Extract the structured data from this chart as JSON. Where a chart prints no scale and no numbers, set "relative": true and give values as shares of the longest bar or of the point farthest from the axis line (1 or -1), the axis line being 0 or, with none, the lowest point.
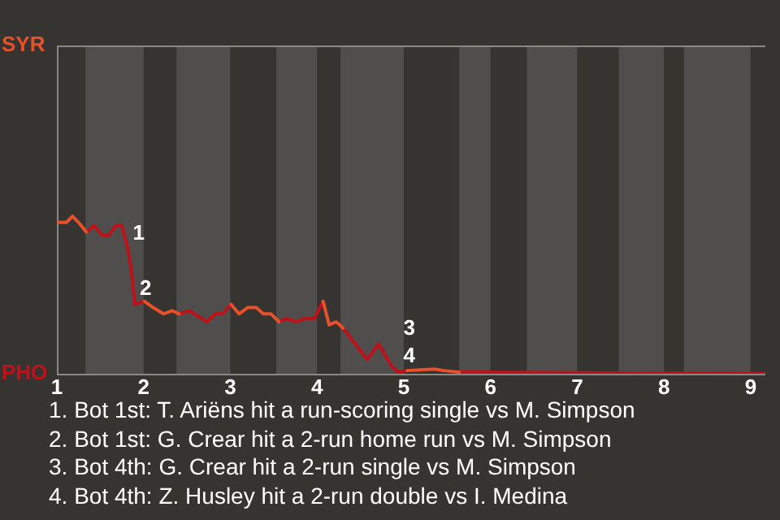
{
  "chart_data": {
    "type": "line",
    "relative": true,
    "x": [
      1.02,
      1.11,
      1.18,
      1.25,
      1.34,
      1.43,
      1.52,
      1.6,
      1.68,
      1.75,
      1.82,
      1.86,
      1.9,
      2.01,
      2.11,
      2.23,
      2.33,
      2.41,
      2.53,
      2.73,
      2.83,
      2.91,
      3.01,
      3.1,
      3.2,
      3.3,
      3.38,
      3.47,
      3.56,
      3.65,
      3.76,
      3.85,
      3.97,
      4.07,
      4.14,
      4.22,
      4.3,
      4.41,
      4.58,
      4.71,
      4.87,
      4.94,
      5.04,
      5.35,
      5.46,
      5.64,
      9.17
    ],
    "series": [
      {
        "name": "SYR",
        "color": "#e8502a",
        "values": [
          0.96,
          0.96,
          1,
          0.96,
          0.9,
          null,
          null,
          null,
          null,
          null,
          null,
          null,
          null,
          0.46,
          0.42,
          0.38,
          0.4,
          0.38,
          null,
          null,
          null,
          null,
          0.44,
          0.38,
          0.42,
          0.42,
          0.38,
          0.38,
          0.33,
          null,
          null,
          null,
          null,
          0.46,
          0.31,
          0.33,
          0.29,
          null,
          null,
          null,
          null,
          null,
          0.02,
          0.03,
          0.02,
          0.01,
          null
        ]
      },
      {
        "name": "PHO",
        "color": "#c0101a",
        "values": [
          null,
          null,
          null,
          null,
          0.9,
          0.94,
          0.88,
          0.88,
          0.94,
          0.94,
          0.79,
          0.65,
          0.44,
          0.46,
          null,
          null,
          null,
          0.38,
          0.4,
          0.33,
          0.38,
          0.38,
          0.44,
          null,
          null,
          null,
          null,
          null,
          0.33,
          0.35,
          0.33,
          0.35,
          0.35,
          0.46,
          null,
          null,
          0.29,
          0.21,
          0.09,
          0.19,
          0.04,
          0.01,
          0.02,
          null,
          null,
          0.01,
          0
        ]
      }
    ],
    "xlim": [
      1,
      9.17
    ],
    "xticks": [
      1,
      2,
      3,
      4,
      5,
      6,
      7,
      8,
      9
    ],
    "legend": false,
    "marker": "none",
    "line_style": "solid",
    "bands": [
      {
        "axis": "x",
        "from": 1.33,
        "to": 2,
        "color": "#4f4e4c"
      },
      {
        "axis": "x",
        "from": 2.38,
        "to": 3,
        "color": "#4f4e4c"
      },
      {
        "axis": "x",
        "from": 3.53,
        "to": 4,
        "color": "#4f4e4c"
      },
      {
        "axis": "x",
        "from": 4.27,
        "to": 5,
        "color": "#4f4e4c"
      },
      {
        "axis": "x",
        "from": 5.64,
        "to": 6,
        "color": "#4f4e4c"
      },
      {
        "axis": "x",
        "from": 6.42,
        "to": 7,
        "color": "#4f4e4c"
      },
      {
        "axis": "x",
        "from": 7.48,
        "to": 8,
        "color": "#4f4e4c"
      },
      {
        "axis": "x",
        "from": 8.23,
        "to": 9,
        "color": "#4f4e4c"
      }
    ],
    "annotations": [
      {
        "text": "1",
        "x": 1.82,
        "y": 0.79
      },
      {
        "text": "2",
        "x": 1.9,
        "y": 0.44
      },
      {
        "text": "3",
        "x": 4.87,
        "y": 0.04
      },
      {
        "text": "4",
        "x": 4.94,
        "y": 0.01
      },
      "1. Bot 1st: T. Ariëns hit a run-scoring single vs M. Simpson",
      "2. Bot 1st: G. Crear hit a 2-run home run vs M. Simpson",
      "3. Bot 4th: G. Crear hit a 2-run single vs M. Simpson",
      "4. Bot 4th: Z. Husley hit a 2-run double vs I. Medina"
    ]
  }
}
